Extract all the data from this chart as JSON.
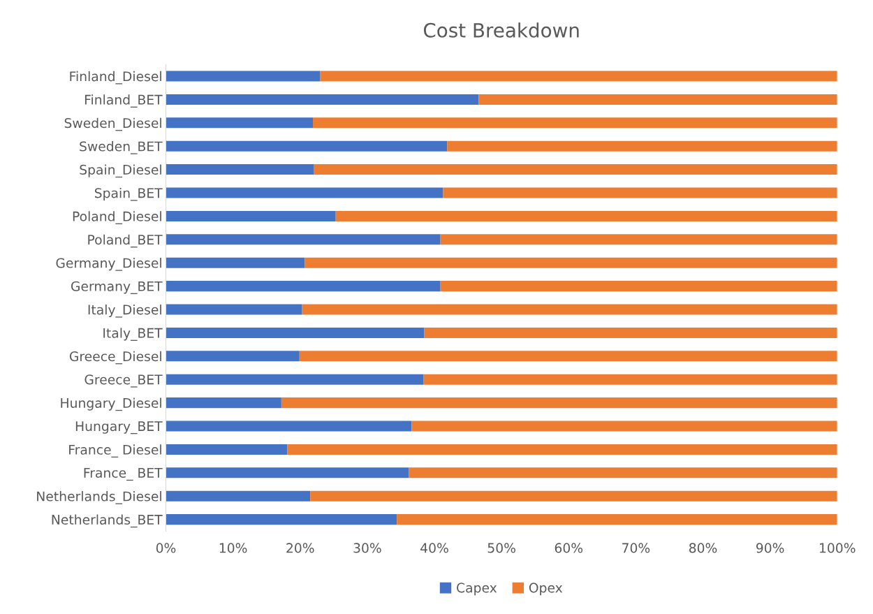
{
  "chart_data": {
    "type": "bar",
    "title": "Cost Breakdown",
    "orientation": "horizontal",
    "stacked": true,
    "categories": [
      "Finland_Diesel",
      "Finland_BET",
      "Sweden_Diesel",
      "Sweden_BET",
      "Spain_Diesel",
      "Spain_BET",
      "Poland_Diesel",
      "Poland_BET",
      "Germany_Diesel",
      "Germany_BET",
      "Italy_Diesel",
      "Italy_BET",
      "Greece_Diesel",
      "Greece_BET",
      "Hungary_Diesel",
      "Hungary_BET",
      "France_ Diesel",
      "France_ BET",
      "Netherlands_Diesel",
      "Netherlands_BET"
    ],
    "series": [
      {
        "name": "Capex",
        "color": "#4472c4",
        "values": [
          23.0,
          46.6,
          21.9,
          41.9,
          22.0,
          41.3,
          25.3,
          40.9,
          20.7,
          40.9,
          20.3,
          38.5,
          19.9,
          38.4,
          17.2,
          36.6,
          18.1,
          36.2,
          21.5,
          34.4
        ]
      },
      {
        "name": "Opex",
        "color": "#ed7d31",
        "values": [
          77.0,
          53.4,
          78.1,
          58.1,
          78.0,
          58.7,
          74.7,
          59.1,
          79.3,
          59.1,
          79.7,
          61.5,
          80.1,
          61.6,
          82.8,
          63.4,
          81.9,
          63.8,
          78.5,
          65.6
        ]
      }
    ],
    "xlim": [
      0,
      100
    ],
    "xticks": [
      {
        "value": 0,
        "label": "0%"
      },
      {
        "value": 10,
        "label": "10%"
      },
      {
        "value": 20,
        "label": "20%"
      },
      {
        "value": 30,
        "label": "30%"
      },
      {
        "value": 40,
        "label": "40%"
      },
      {
        "value": 50,
        "label": "50%"
      },
      {
        "value": 60,
        "label": "60%"
      },
      {
        "value": 70,
        "label": "70%"
      },
      {
        "value": 80,
        "label": "80%"
      },
      {
        "value": 90,
        "label": "90%"
      },
      {
        "value": 100,
        "label": "100%"
      }
    ],
    "legend": "bottom"
  }
}
